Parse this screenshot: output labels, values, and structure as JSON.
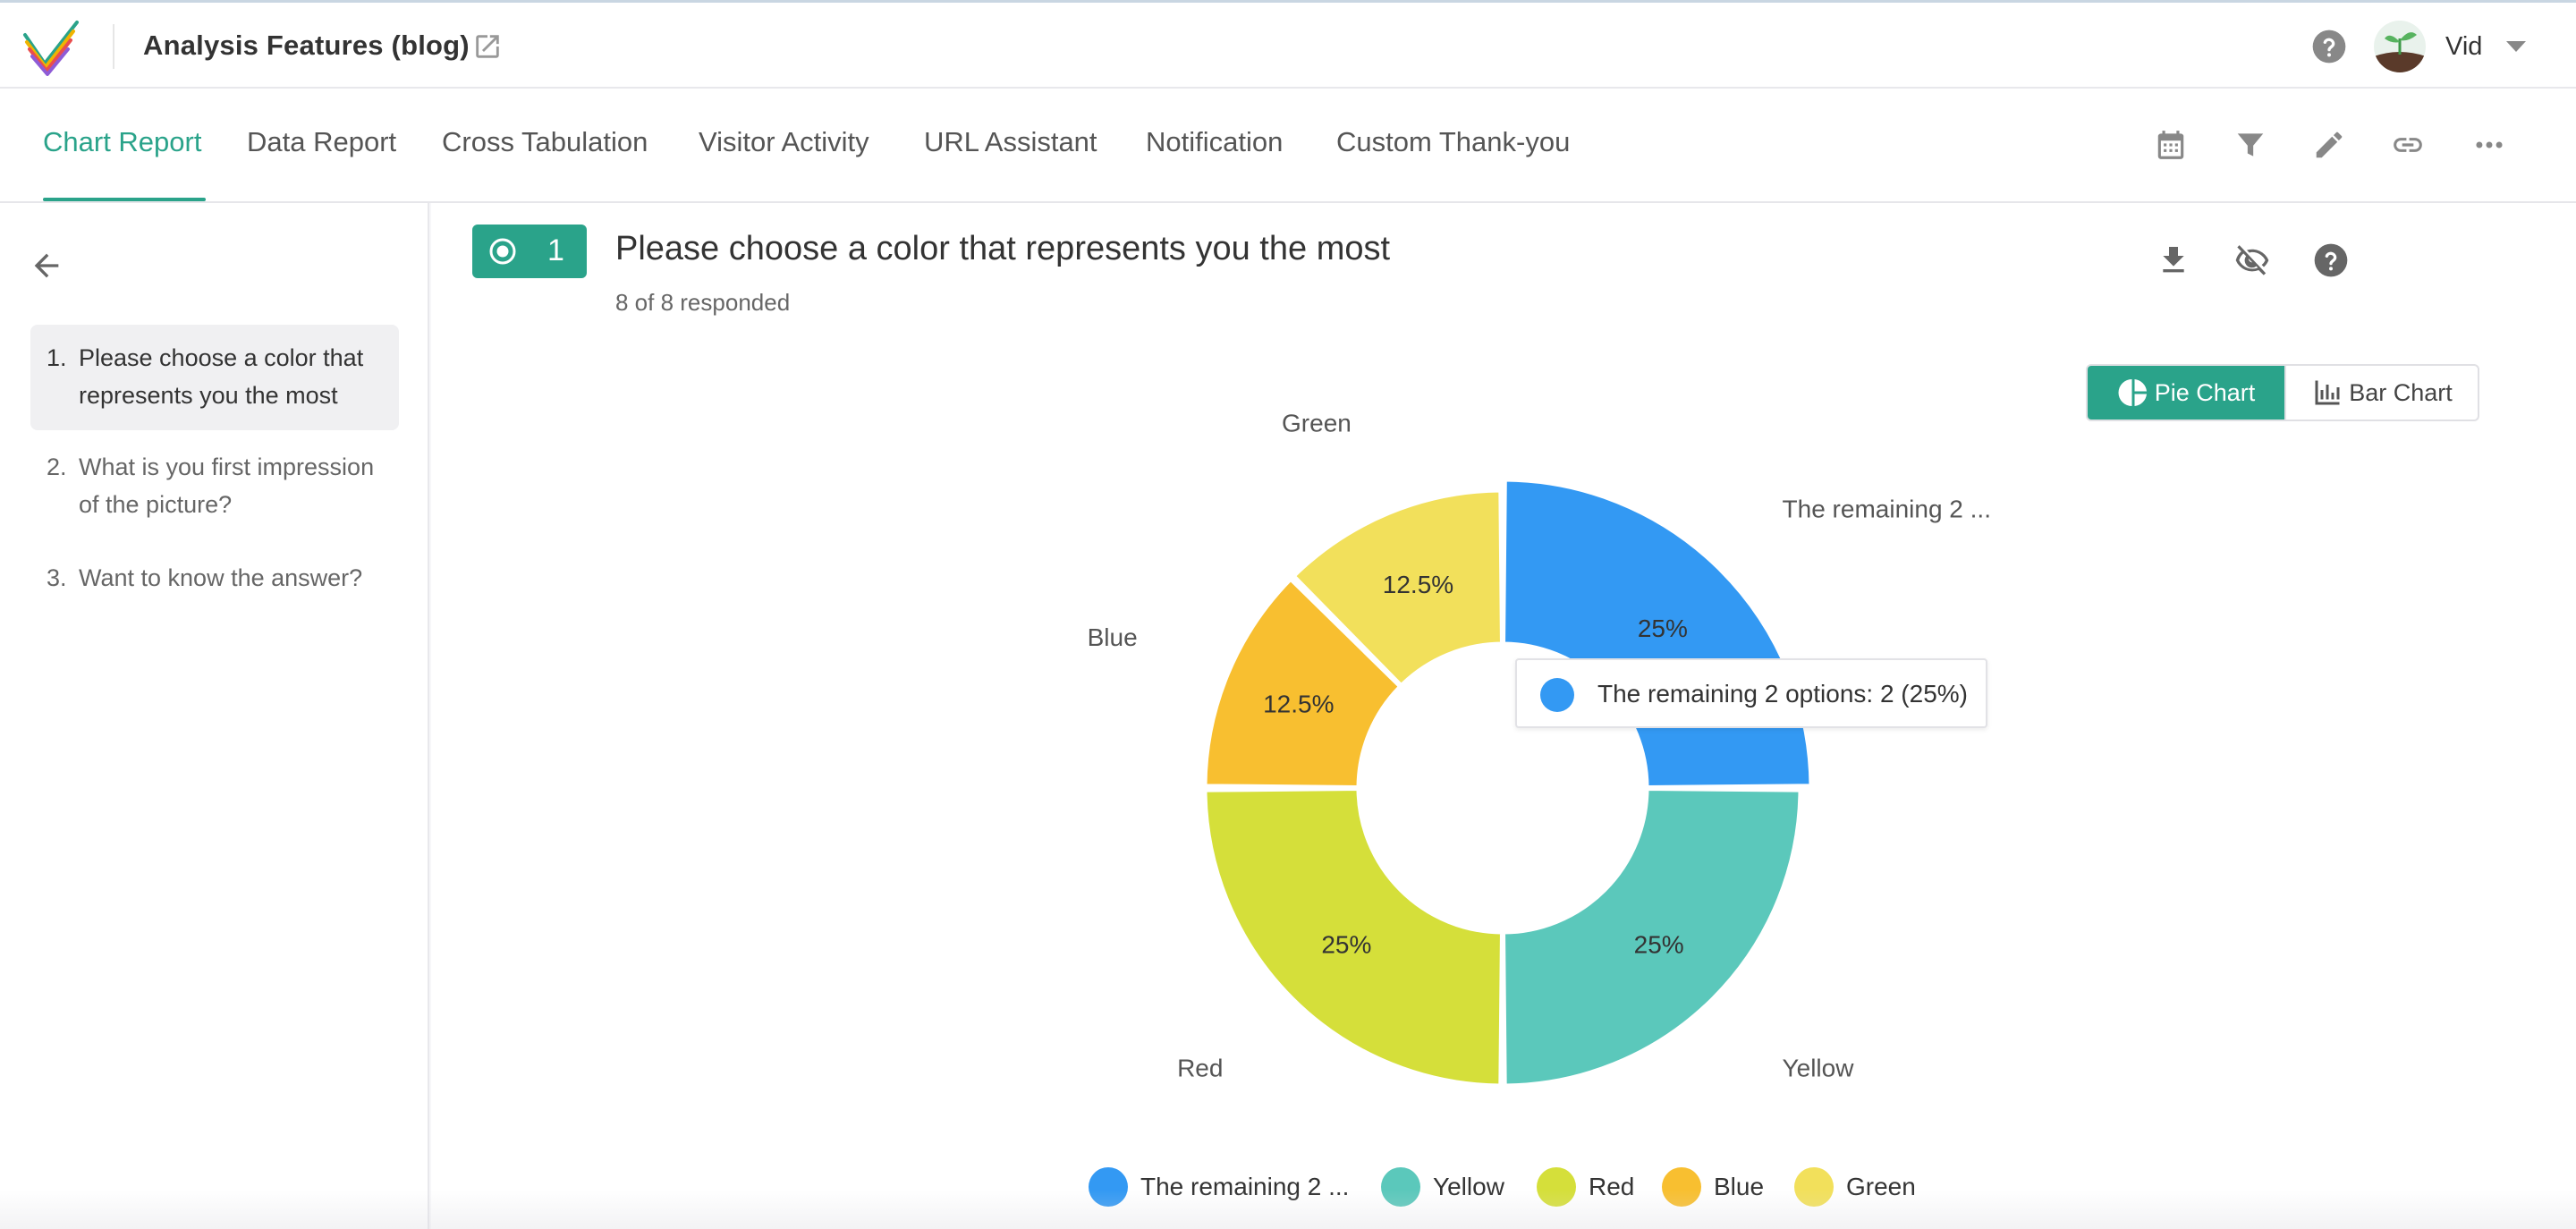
{
  "header": {
    "project_title": "Analysis Features (blog)",
    "user_name": "Vid"
  },
  "tabs": [
    {
      "label": "Chart Report",
      "active": true
    },
    {
      "label": "Data Report"
    },
    {
      "label": "Cross Tabulation"
    },
    {
      "label": "Visitor Activity"
    },
    {
      "label": "URL Assistant"
    },
    {
      "label": "Notification"
    },
    {
      "label": "Custom Thank-you"
    }
  ],
  "toolbar_icons": [
    "calendar-icon",
    "filter-icon",
    "edit-icon",
    "link-icon",
    "more-icon"
  ],
  "sidebar": {
    "questions": [
      {
        "num": "1.",
        "text": "Please choose a color that represents you the most",
        "active": true
      },
      {
        "num": "2.",
        "text": "What is you first impression of the picture?"
      },
      {
        "num": "3.",
        "text": "Want to know the answer?"
      }
    ]
  },
  "question": {
    "number": "1",
    "title": "Please choose a color that represents you the most",
    "responded": "8 of 8 responded"
  },
  "chart_toggle": {
    "pie_label": "Pie Chart",
    "bar_label": "Bar Chart",
    "active": "pie"
  },
  "tooltip": {
    "text": "The remaining 2 options: 2 (25%)",
    "color": "#3399f3"
  },
  "legend": [
    {
      "label": "The remaining 2 ...",
      "color": "#3399f3"
    },
    {
      "label": "Yellow",
      "color": "#5bc8bb"
    },
    {
      "label": "Red",
      "color": "#d5df3a"
    },
    {
      "label": "Blue",
      "color": "#f8bf30"
    },
    {
      "label": "Green",
      "color": "#f2e05b"
    }
  ],
  "chart_data": {
    "type": "pie",
    "donut": true,
    "categories": [
      "The remaining 2 ...",
      "Yellow",
      "Red",
      "Blue",
      "Green"
    ],
    "values": [
      25,
      25,
      25,
      12.5,
      12.5
    ],
    "value_labels": [
      "25%",
      "25%",
      "25%",
      "12.5%",
      "12.5%"
    ],
    "colors": [
      "#3399f3",
      "#5bc8bb",
      "#d5df3a",
      "#f8bf30",
      "#f2e05b"
    ],
    "legend_position": "bottom"
  }
}
